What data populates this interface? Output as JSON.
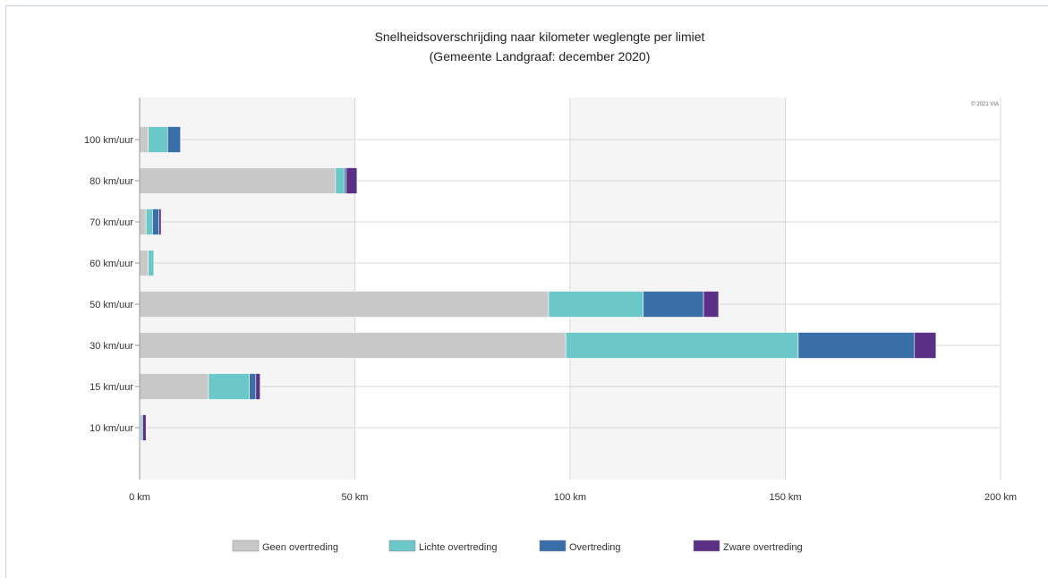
{
  "chart_data": {
    "type": "bar",
    "orientation": "horizontal",
    "stacked": true,
    "title": "Snelheidsoverschrijding naar kilometer weglengte per limiet",
    "subtitle": "(Gemeente Landgraaf: december 2020)",
    "credit": "© 2021 VIA",
    "categories": [
      "100 km/uur",
      "80 km/uur",
      "70 km/uur",
      "60 km/uur",
      "50 km/uur",
      "30 km/uur",
      "15 km/uur",
      "10 km/uur"
    ],
    "series": [
      {
        "name": "Geen overtreding",
        "color": "#c8c8c8",
        "values": [
          2,
          45.5,
          1.5,
          2,
          95,
          99,
          16,
          0.2
        ]
      },
      {
        "name": "Lichte overtreding",
        "color": "#6cc8c8",
        "values": [
          4.5,
          2,
          1.5,
          1.3,
          22,
          54,
          9.5,
          0.3
        ]
      },
      {
        "name": "Overtreding",
        "color": "#3a6ea8",
        "values": [
          3,
          0.5,
          1.5,
          0,
          14,
          27,
          1.5,
          0.2
        ]
      },
      {
        "name": "Zware overtreding",
        "color": "#5b2f85",
        "values": [
          0,
          2.5,
          0.5,
          0,
          3.5,
          5,
          1,
          0.8
        ]
      }
    ],
    "xlim": [
      0,
      200
    ],
    "x_ticks": [
      {
        "value": 0,
        "label": "0 km"
      },
      {
        "value": 50,
        "label": "50 km"
      },
      {
        "value": 100,
        "label": "100 km"
      },
      {
        "value": 150,
        "label": "150 km"
      },
      {
        "value": 200,
        "label": "200 km"
      }
    ],
    "grid": true,
    "legend_position": "bottom"
  }
}
